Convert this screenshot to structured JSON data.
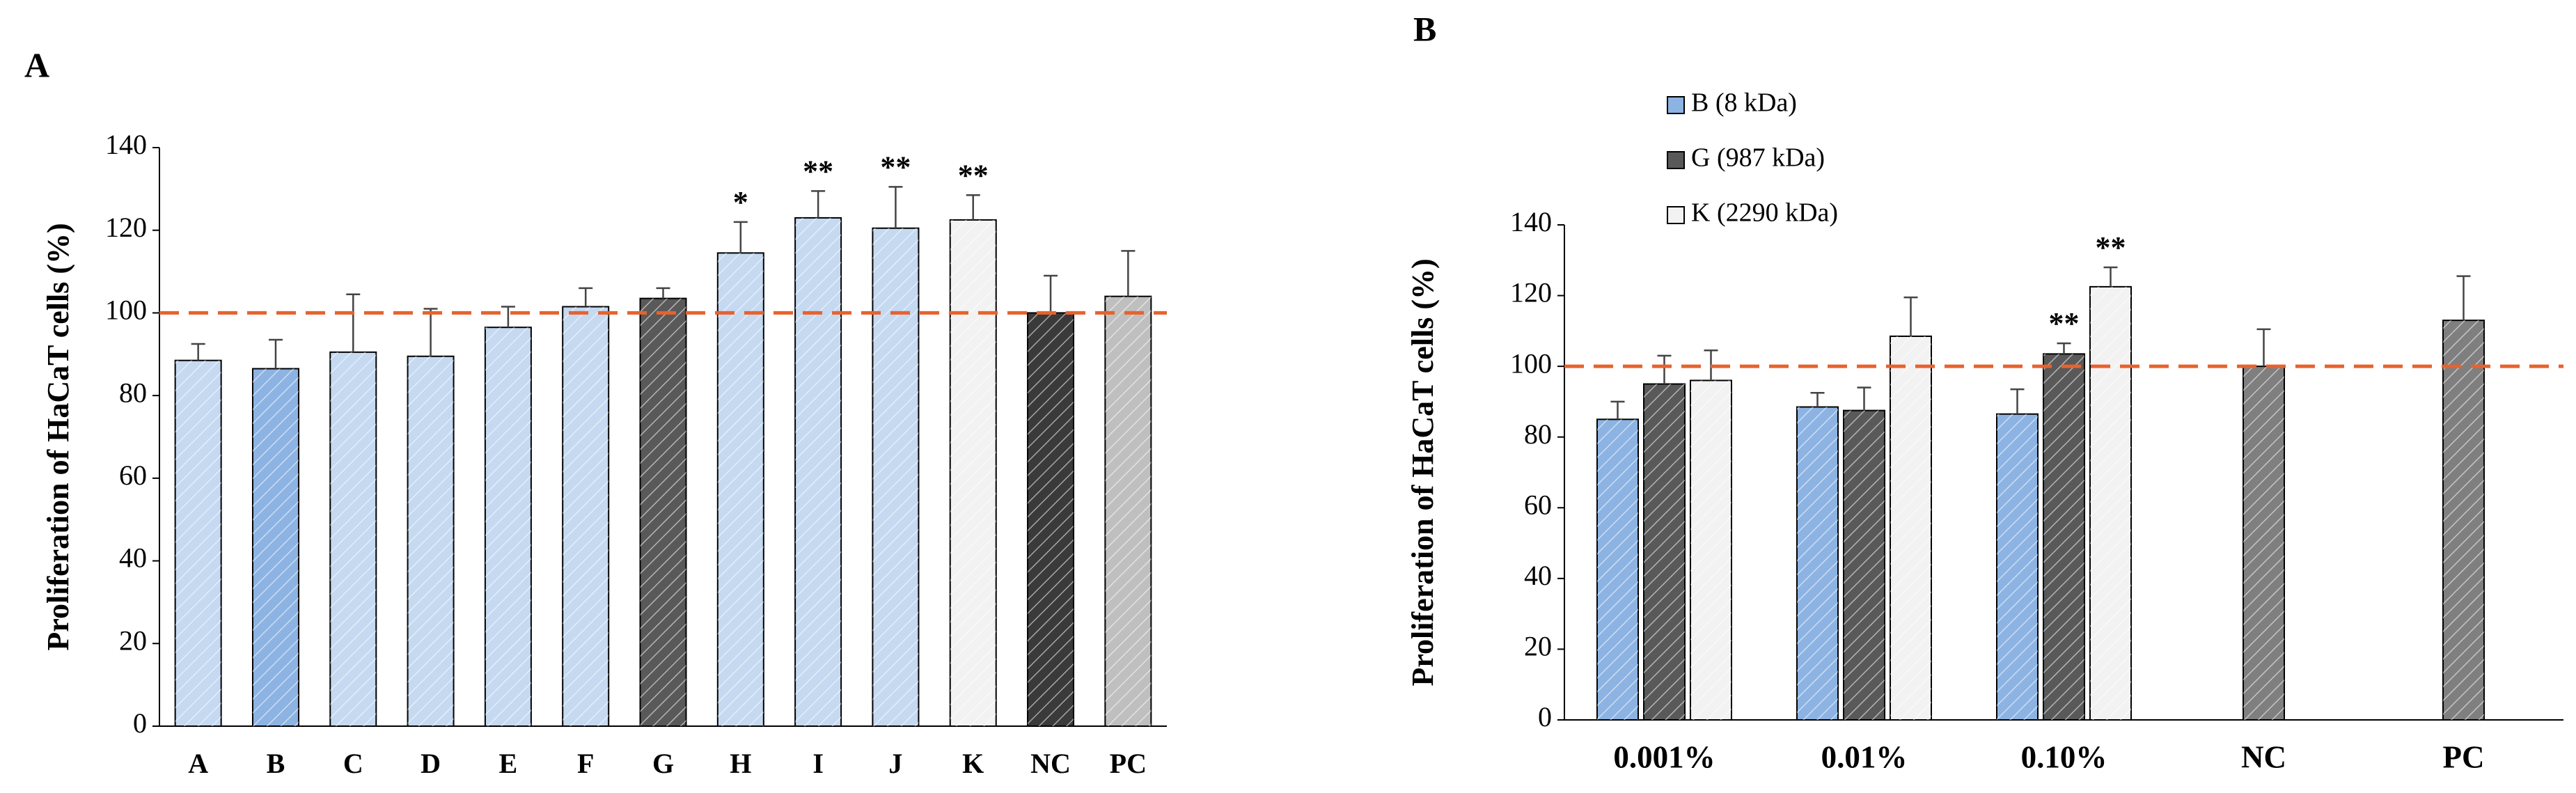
{
  "chart_data": [
    {
      "type": "bar",
      "title": "A",
      "y_label": "Proliferation of HaCaT cells (%)",
      "categories": [
        "A",
        "B",
        "C",
        "D",
        "E",
        "F",
        "G",
        "H",
        "I",
        "J",
        "K",
        "NC",
        "PC"
      ],
      "values": [
        88.5,
        86.5,
        90.5,
        89.5,
        96.5,
        101.5,
        103.5,
        114.5,
        123,
        120.5,
        122.5,
        100,
        104
      ],
      "errors": [
        4,
        7,
        14,
        11.5,
        5,
        4.5,
        2.5,
        7.5,
        6.5,
        10,
        6,
        9,
        11
      ],
      "colors": [
        "#c5d9f1",
        "#8db3e2",
        "#c5d9f1",
        "#c5d9f1",
        "#c5d9f1",
        "#c5d9f1",
        "#595959",
        "#c5d9f1",
        "#c5d9f1",
        "#c5d9f1",
        "#f2f2f2",
        "#3a3a3a",
        "#bfbfbf"
      ],
      "annotations": [
        {
          "index": 7,
          "text": "*"
        },
        {
          "index": 8,
          "text": "**"
        },
        {
          "index": 9,
          "text": "**"
        },
        {
          "index": 10,
          "text": "**"
        }
      ],
      "reference_line": 100,
      "reference_color": "#e8622c",
      "ylim": [
        0,
        140
      ],
      "yticks": [
        0,
        20,
        40,
        60,
        80,
        100,
        120,
        140
      ]
    },
    {
      "type": "bar",
      "title": "B",
      "y_label": "Proliferation of HaCaT cells (%)",
      "categories": [
        "0.001%",
        "0.01%",
        "0.10%",
        "NC",
        "PC"
      ],
      "series": [
        {
          "name": "B (8 kDa)",
          "color": "#8db3e2",
          "values": [
            85,
            88.5,
            86.5,
            null,
            null
          ],
          "errors": [
            5,
            4,
            7,
            null,
            null
          ]
        },
        {
          "name": "G (987 kDa)",
          "color": "#595959",
          "values": [
            95,
            87.5,
            103.5,
            null,
            null
          ],
          "errors": [
            8,
            6.5,
            3,
            null,
            null
          ]
        },
        {
          "name": "K (2290 kDa)",
          "color": "#f2f2f2",
          "values": [
            96,
            108.5,
            122.5,
            null,
            null
          ],
          "errors": [
            8.5,
            11,
            5.5,
            null,
            null
          ]
        },
        {
          "color": "#7f7f7f",
          "values": [
            null,
            null,
            null,
            100,
            113
          ],
          "errors": [
            null,
            null,
            null,
            10.5,
            12.5
          ]
        }
      ],
      "annotations": [
        {
          "series": 1,
          "index": 2,
          "text": "**"
        },
        {
          "series": 2,
          "index": 2,
          "text": "**"
        }
      ],
      "reference_line": 100,
      "reference_color": "#e8622c",
      "ylim": [
        0,
        140
      ],
      "yticks": [
        0,
        20,
        40,
        60,
        80,
        100,
        120,
        140
      ]
    }
  ]
}
